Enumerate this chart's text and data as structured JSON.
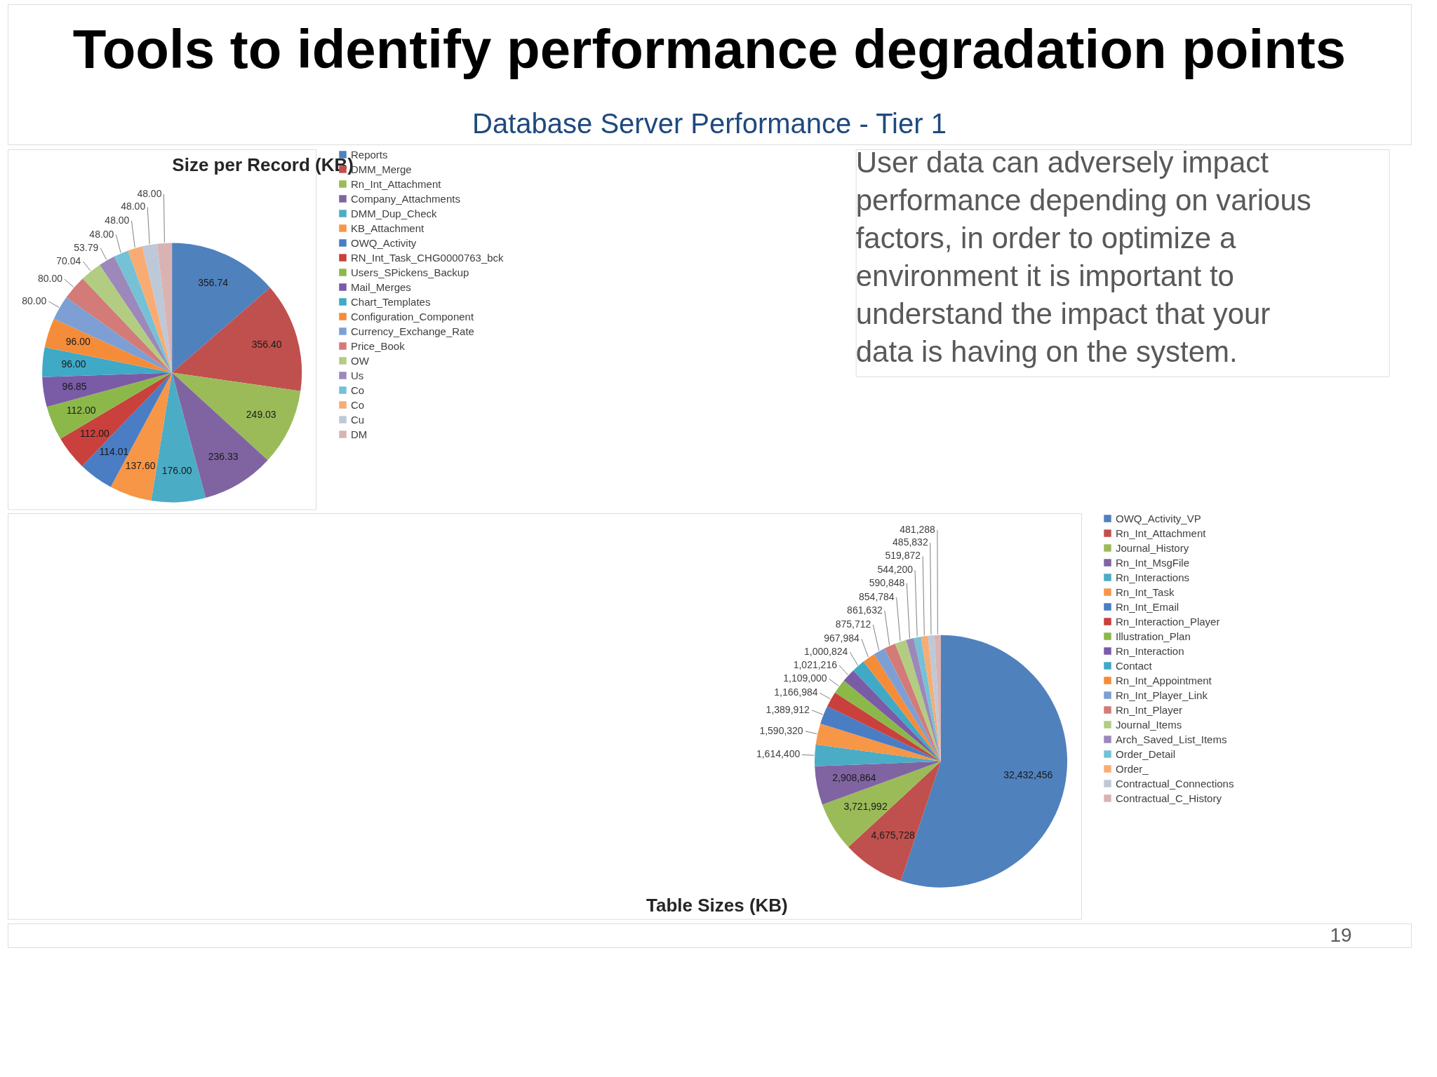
{
  "chart_data": [
    {
      "type": "other",
      "title": "Tools to identify performance degradation points",
      "subtitle": "Database Server Performance - Tier 1",
      "annotations": [
        "User data can adversely impact performance depending on various factors, in order to optimize a environment it is important to understand the impact that your data is having on the system.",
        "19"
      ]
    },
    {
      "type": "pie",
      "title": "Size per Record (KB)",
      "legend": "right",
      "categories": [
        "Reports",
        "DMM_Merge",
        "Rn_Int_Attachment",
        "Company_Attachments",
        "DMM_Dup_Check",
        "KB_Attachment",
        "OWQ_Activity",
        "RN_Int_Task_CHG0000763_bck",
        "Users_SPickens_Backup",
        "Mail_Merges",
        "Chart_Templates",
        "Configuration_Component",
        "Currency_Exchange_Rate",
        "Price_Book",
        "OW",
        "Us",
        "Co",
        "Co",
        "Cu",
        "DM"
      ],
      "values": [
        356.74,
        356.4,
        249.03,
        236.33,
        176.0,
        137.6,
        114.01,
        112.0,
        112.0,
        96.85,
        96.0,
        96.0,
        80.0,
        80.0,
        70.04,
        53.79,
        48.0,
        48.0,
        48.0,
        48.0
      ],
      "value_labels": [
        "356.74",
        "356.40",
        "249.03",
        "236.33",
        "176.00",
        "137.60",
        "114.01",
        "112.00",
        "112.00",
        "96.85",
        "96.00",
        "96.00",
        "80.00",
        "80.00",
        "70.04",
        "53.79",
        "48.00",
        "48.00",
        "48.00",
        "48.00"
      ],
      "colors": [
        "#4f81bd",
        "#c0504d",
        "#9bbb59",
        "#8064a2",
        "#4bacc6",
        "#f79646",
        "#4a7dc4",
        "#c9403d",
        "#8cb84a",
        "#7a5ba6",
        "#3fa9c6",
        "#f58c3a",
        "#7d9fd3",
        "#d37b78",
        "#b2cd82",
        "#9c88ba",
        "#75c1d6",
        "#f8ac74",
        "#bdc8d8",
        "#d9b3b2"
      ]
    },
    {
      "type": "pie",
      "title": "Table Sizes (KB)",
      "legend": "right",
      "categories": [
        "OWQ_Activity_VP",
        "Rn_Int_Attachment",
        "Journal_History",
        "Rn_Int_MsgFile",
        "Rn_Interactions",
        "Rn_Int_Task",
        "Rn_Int_Email",
        "Rn_Interaction_Player",
        "Illustration_Plan",
        "Rn_Interaction",
        "Contact",
        "Rn_Int_Appointment",
        "Rn_Int_Player_Link",
        "Rn_Int_Player",
        "Journal_Items",
        "Arch_Saved_List_Items",
        "Order_Detail",
        "Order_",
        "Contractual_Connections",
        "Contractual_C_History"
      ],
      "values": [
        32432456,
        4675728,
        3721992,
        2908864,
        1614400,
        1590320,
        1389912,
        1166984,
        1109000,
        1021216,
        1000824,
        967984,
        875712,
        861632,
        854784,
        590848,
        544200,
        519872,
        485832,
        481288
      ],
      "value_labels": [
        "32,432,456",
        "4,675,728",
        "3,721,992",
        "2,908,864",
        "1,614,400",
        "1,590,320",
        "1,389,912",
        "1,166,984",
        "1,109,000",
        "1,021,216",
        "1,000,824",
        "967,984",
        "875,712",
        "861,632",
        "854,784",
        "590,848",
        "544,200",
        "519,872",
        "485,832",
        "481,288"
      ],
      "colors": [
        "#4f81bd",
        "#c0504d",
        "#9bbb59",
        "#8064a2",
        "#4bacc6",
        "#f79646",
        "#4a7dc4",
        "#c9403d",
        "#8cb84a",
        "#7a5ba6",
        "#3fa9c6",
        "#f58c3a",
        "#7d9fd3",
        "#d37b78",
        "#b2cd82",
        "#9c88ba",
        "#75c1d6",
        "#f8ac74",
        "#bdc8d8",
        "#d9b3b2"
      ]
    }
  ]
}
